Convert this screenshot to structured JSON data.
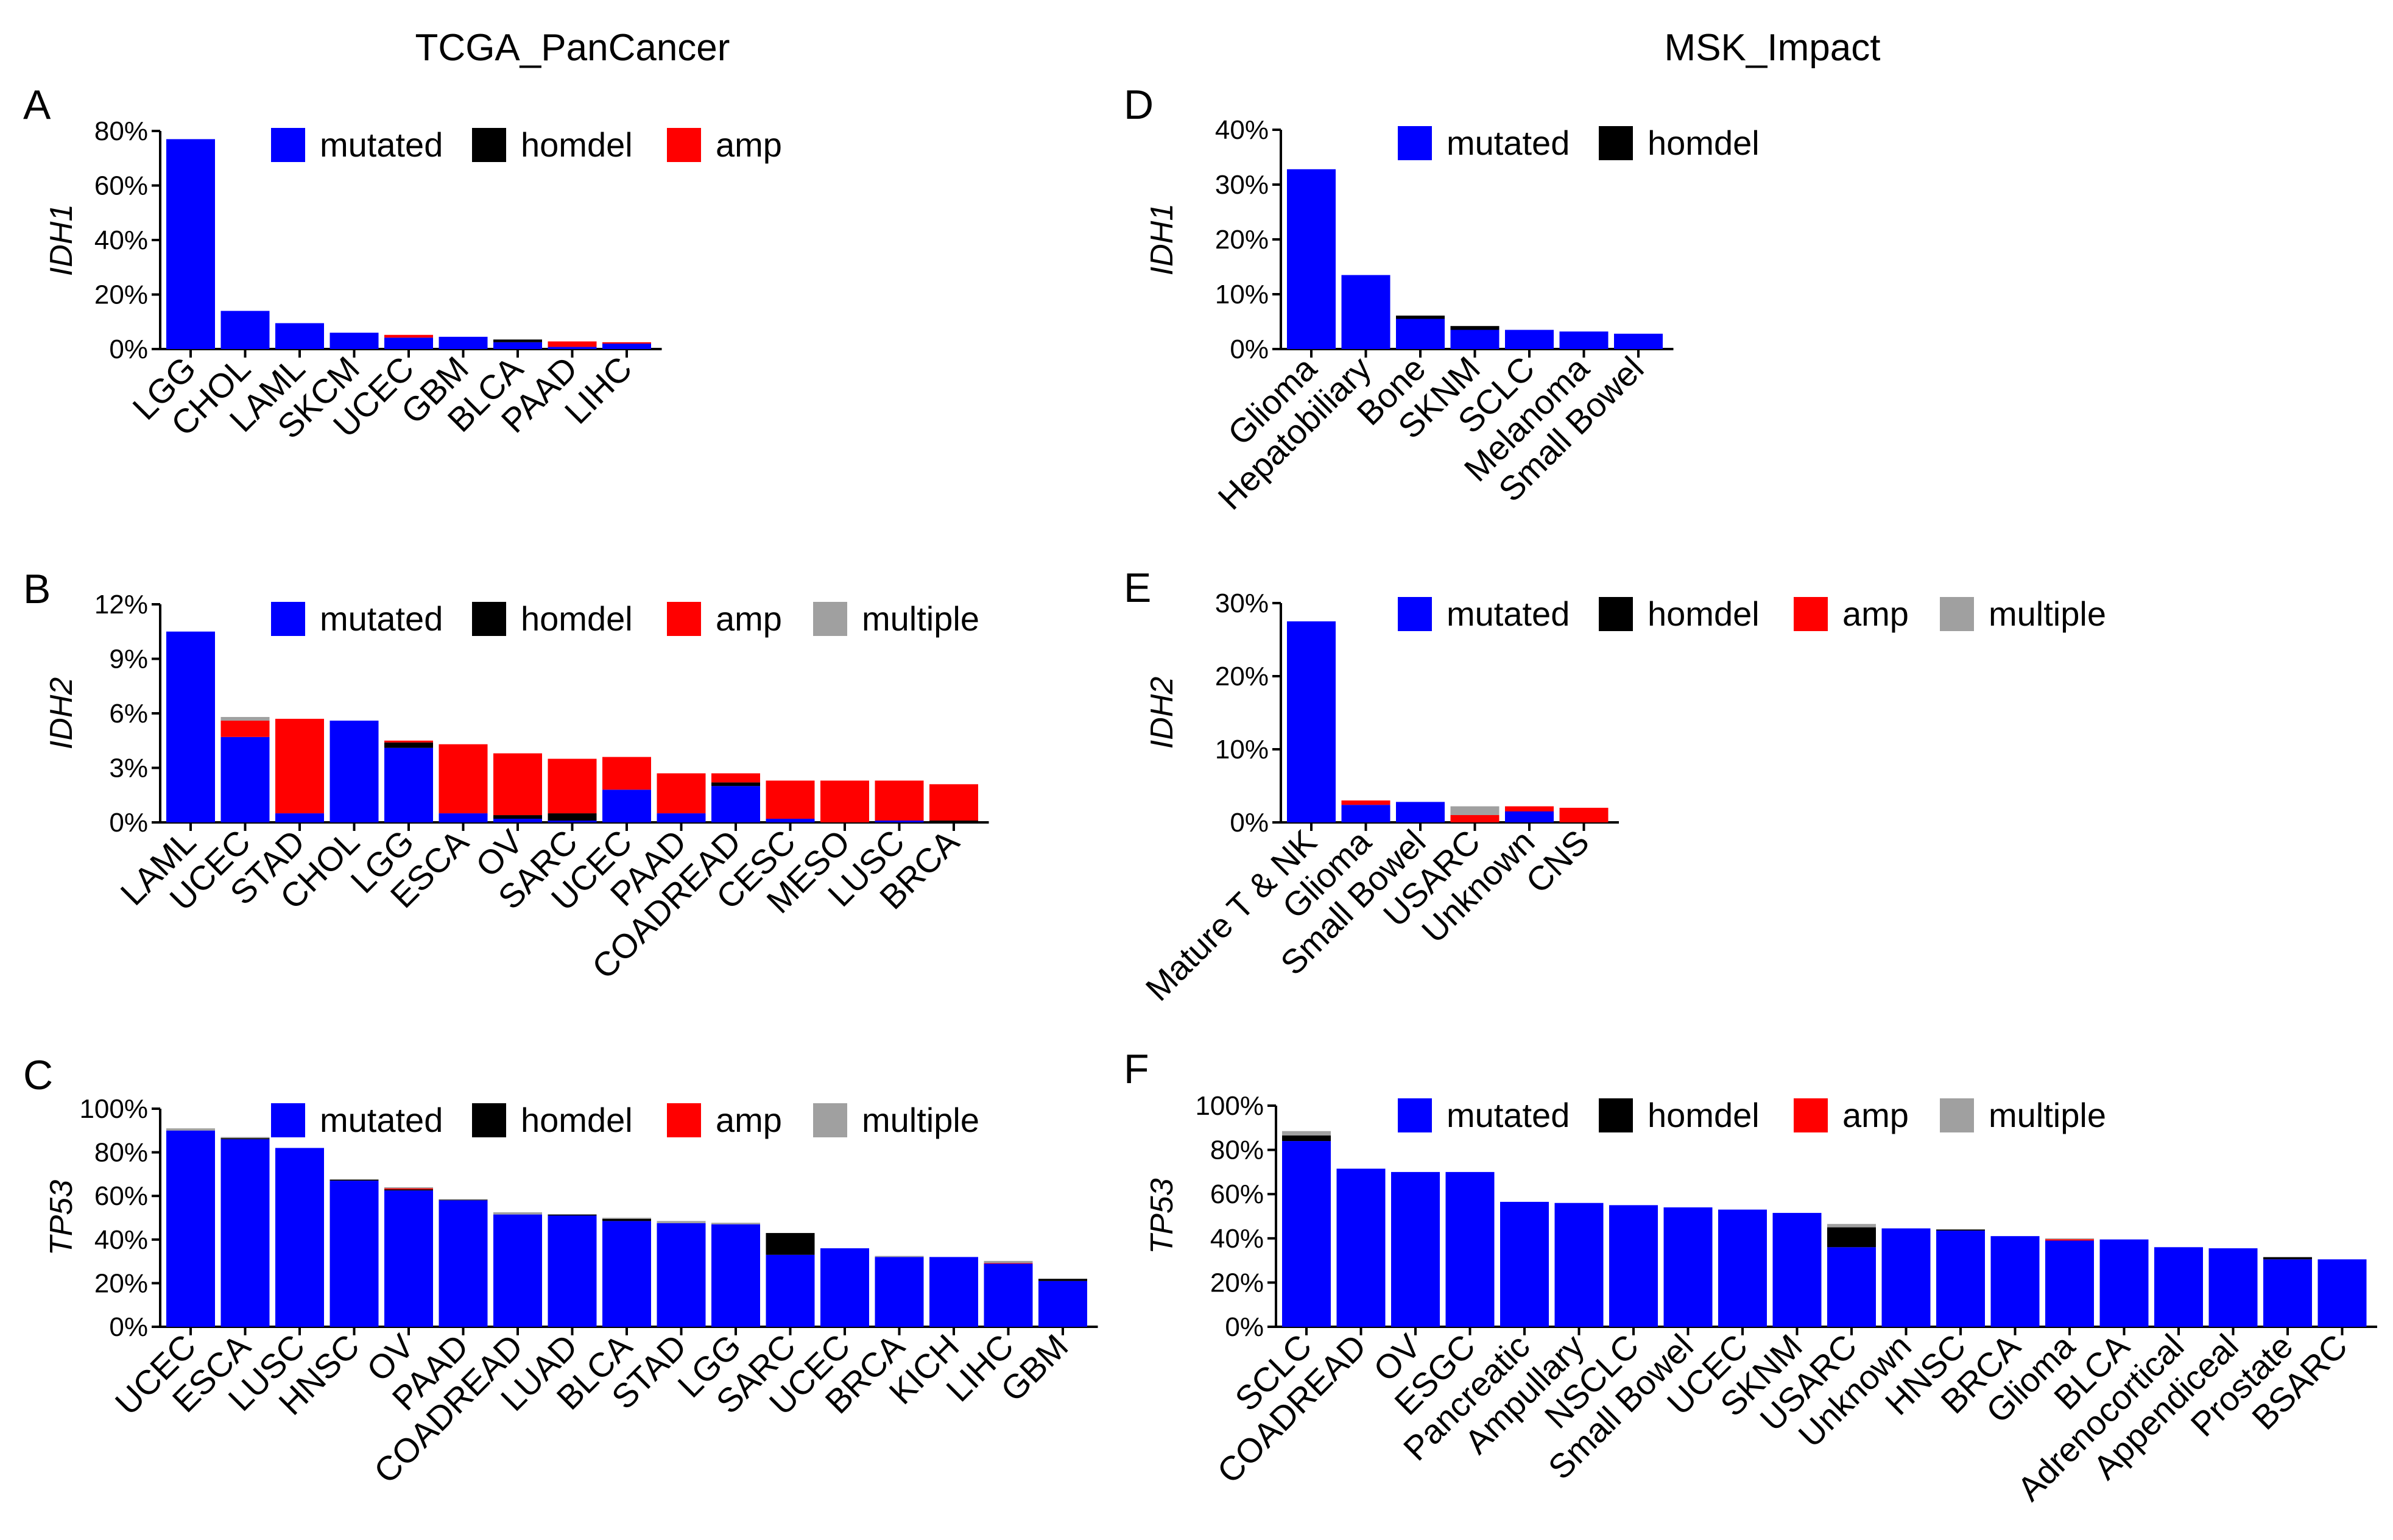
{
  "titles": {
    "left": "TCGA_PanCancer",
    "right": "MSK_Impact"
  },
  "colors": {
    "mutated": "#0000ff",
    "homdel": "#000000",
    "amp": "#ff0000",
    "multiple": "#a0a0a0"
  },
  "chart_data": [
    {
      "type": "bar",
      "stacked": true,
      "panel": "A",
      "ylabel": "IDH1",
      "ylim": [
        0,
        80
      ],
      "yticks": [
        "0%",
        "20%",
        "40%",
        "60%",
        "80%"
      ],
      "legend": [
        "mutated",
        "homdel",
        "amp"
      ],
      "categories": [
        "LGG",
        "CHOL",
        "LAML",
        "SKCM",
        "UCEC",
        "GBM",
        "BLCA",
        "PAAD",
        "LIHC"
      ],
      "series": [
        {
          "name": "mutated",
          "values": [
            77,
            14,
            9.5,
            6,
            4.2,
            4.5,
            2.5,
            0.8,
            2
          ]
        },
        {
          "name": "homdel",
          "values": [
            0,
            0,
            0,
            0,
            0,
            0,
            1,
            0,
            0
          ]
        },
        {
          "name": "amp",
          "values": [
            0,
            0,
            0,
            0,
            1,
            0,
            0,
            2,
            0.5
          ]
        },
        {
          "name": "multiple",
          "values": [
            0,
            0,
            0,
            0,
            0,
            0,
            0,
            0,
            0
          ]
        }
      ]
    },
    {
      "type": "bar",
      "stacked": true,
      "panel": "B",
      "ylabel": "IDH2",
      "ylim": [
        0,
        12
      ],
      "yticks": [
        "0%",
        "3%",
        "6%",
        "9%",
        "12%"
      ],
      "legend": [
        "mutated",
        "homdel",
        "amp",
        "multiple"
      ],
      "categories": [
        "LAML",
        "UCEC",
        "STAD",
        "CHOL",
        "LGG",
        "ESCA",
        "OV",
        "SARC",
        "UCEC",
        "PAAD",
        "COADREAD",
        "CESC",
        "MESO",
        "LUSC",
        "BRCA"
      ],
      "series": [
        {
          "name": "mutated",
          "values": [
            10.5,
            4.7,
            0.5,
            5.6,
            4.1,
            0.5,
            0.2,
            0.1,
            1.8,
            0.5,
            2.0,
            0.2,
            0,
            0.1,
            0
          ]
        },
        {
          "name": "homdel",
          "values": [
            0,
            0,
            0,
            0,
            0.3,
            0,
            0.2,
            0.4,
            0,
            0,
            0.2,
            0,
            0,
            0,
            0.1
          ]
        },
        {
          "name": "amp",
          "values": [
            0,
            0.9,
            5.2,
            0,
            0.1,
            3.8,
            3.4,
            3.0,
            1.8,
            2.2,
            0.5,
            2.1,
            2.3,
            2.2,
            2.0
          ]
        },
        {
          "name": "multiple",
          "values": [
            0,
            0.2,
            0,
            0,
            0,
            0,
            0,
            0,
            0,
            0,
            0,
            0,
            0,
            0,
            0
          ]
        }
      ]
    },
    {
      "type": "bar",
      "stacked": true,
      "panel": "C",
      "ylabel": "TP53",
      "ylim": [
        0,
        100
      ],
      "yticks": [
        "0%",
        "20%",
        "40%",
        "60%",
        "80%",
        "100%"
      ],
      "legend": [
        "mutated",
        "homdel",
        "amp",
        "multiple"
      ],
      "categories": [
        "UCEC",
        "ESCA",
        "LUSC",
        "HNSC",
        "OV",
        "PAAD",
        "COADREAD",
        "LUAD",
        "BLCA",
        "STAD",
        "LGG",
        "SARC",
        "UCEC",
        "BRCA",
        "KICH",
        "LIHC",
        "GBM"
      ],
      "series": [
        {
          "name": "mutated",
          "values": [
            90,
            86,
            82,
            67,
            62.5,
            58,
            51.5,
            51,
            48.5,
            47.5,
            47,
            33,
            36,
            32,
            32,
            29,
            21
          ]
        },
        {
          "name": "homdel",
          "values": [
            0,
            0.5,
            0,
            0.5,
            0.5,
            0.3,
            0,
            0.5,
            1,
            0,
            0,
            10,
            0,
            0,
            0,
            0,
            1
          ]
        },
        {
          "name": "amp",
          "values": [
            0,
            0,
            0,
            0,
            0.5,
            0,
            0,
            0,
            0,
            0,
            0,
            0,
            0,
            0,
            0,
            0.2,
            0
          ]
        },
        {
          "name": "multiple",
          "values": [
            1,
            0.5,
            0,
            0,
            0.5,
            0.2,
            1,
            0,
            0.5,
            1,
            0.7,
            0,
            0,
            0.5,
            0,
            1,
            0
          ]
        }
      ]
    },
    {
      "type": "bar",
      "stacked": true,
      "panel": "D",
      "ylabel": "IDH1",
      "ylim": [
        0,
        40
      ],
      "yticks": [
        "0%",
        "10%",
        "20%",
        "30%",
        "40%"
      ],
      "legend": [
        "mutated",
        "homdel"
      ],
      "categories": [
        "Glioma",
        "Hepatobiliary",
        "Bone",
        "SKNM",
        "SCLC",
        "Melanoma",
        "Small Bowel"
      ],
      "series": [
        {
          "name": "mutated",
          "values": [
            32.8,
            13.5,
            5.5,
            3.5,
            3.5,
            3.2,
            2.8
          ]
        },
        {
          "name": "homdel",
          "values": [
            0,
            0,
            0.6,
            0.7,
            0,
            0,
            0
          ]
        },
        {
          "name": "amp",
          "values": [
            0,
            0,
            0,
            0,
            0,
            0,
            0
          ]
        },
        {
          "name": "multiple",
          "values": [
            0,
            0,
            0,
            0,
            0,
            0,
            0
          ]
        }
      ]
    },
    {
      "type": "bar",
      "stacked": true,
      "panel": "E",
      "ylabel": "IDH2",
      "ylim": [
        0,
        30
      ],
      "yticks": [
        "0%",
        "10%",
        "20%",
        "30%"
      ],
      "legend": [
        "mutated",
        "homdel",
        "amp",
        "multiple"
      ],
      "categories": [
        "Mature T & NK",
        "Glioma",
        "Small Bowel",
        "USARC",
        "Unknown",
        "CNS"
      ],
      "series": [
        {
          "name": "mutated",
          "values": [
            27.5,
            2.4,
            2.8,
            0,
            1.5,
            0
          ]
        },
        {
          "name": "homdel",
          "values": [
            0,
            0,
            0,
            0,
            0,
            0
          ]
        },
        {
          "name": "amp",
          "values": [
            0,
            0.6,
            0,
            1,
            0.7,
            2
          ]
        },
        {
          "name": "multiple",
          "values": [
            0,
            0,
            0,
            1.2,
            0,
            0
          ]
        }
      ]
    },
    {
      "type": "bar",
      "stacked": true,
      "panel": "F",
      "ylabel": "TP53",
      "ylim": [
        0,
        100
      ],
      "yticks": [
        "0%",
        "20%",
        "40%",
        "60%",
        "80%",
        "100%"
      ],
      "legend": [
        "mutated",
        "homdel",
        "amp",
        "multiple"
      ],
      "categories": [
        "SCLC",
        "COADREAD",
        "OV",
        "ESGC",
        "Pancreatic",
        "Ampullary",
        "NSCLC",
        "Small Bowel",
        "UCEC",
        "SKNM",
        "USARC",
        "Unknown",
        "HNSC",
        "BRCA",
        "Glioma",
        "BLCA",
        "Adrenocortical",
        "Appendiceal",
        "Prostate",
        "BSARC"
      ],
      "series": [
        {
          "name": "mutated",
          "values": [
            84,
            71.5,
            70,
            70,
            56.5,
            56,
            55,
            54,
            53,
            51.5,
            36,
            44.5,
            43.5,
            41,
            39,
            39.5,
            36,
            35.5,
            30.5,
            30.5
          ]
        },
        {
          "name": "homdel",
          "values": [
            2.5,
            0,
            0,
            0,
            0,
            0,
            0,
            0,
            0,
            0,
            9,
            0,
            0.5,
            0,
            0,
            0,
            0,
            0,
            1,
            0
          ]
        },
        {
          "name": "amp",
          "values": [
            0,
            0,
            0,
            0,
            0,
            0,
            0,
            0,
            0,
            0,
            0,
            0,
            0,
            0,
            0.6,
            0,
            0,
            0,
            0,
            0
          ]
        },
        {
          "name": "multiple",
          "values": [
            2,
            0,
            0,
            0,
            0,
            0,
            0,
            0,
            0,
            0,
            1.5,
            0,
            0,
            0,
            0.4,
            0,
            0,
            0,
            0,
            0
          ]
        }
      ]
    }
  ]
}
